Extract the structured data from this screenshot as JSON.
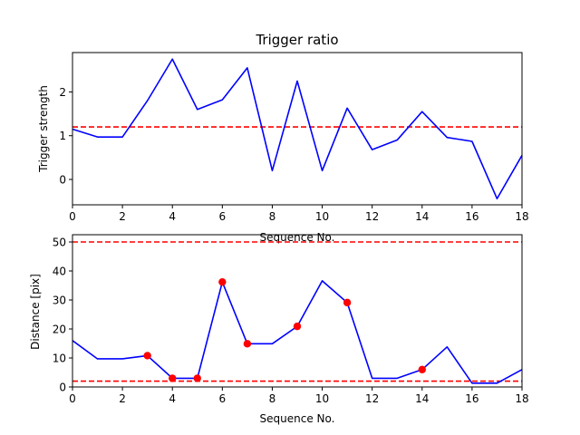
{
  "chart_data": [
    {
      "type": "line",
      "title": "Trigger ratio",
      "xlabel": "Sequence No.",
      "ylabel": "Trigger strength",
      "xlim": [
        0,
        18
      ],
      "ylim": [
        -0.58,
        2.9
      ],
      "xticks": [
        0,
        2,
        4,
        6,
        8,
        10,
        12,
        14,
        16,
        18
      ],
      "yticks": [
        0,
        1,
        2
      ],
      "grid": false,
      "series": [
        {
          "x": [
            0,
            1,
            2,
            3,
            4,
            5,
            6,
            7,
            8,
            9,
            10,
            11,
            12,
            13,
            14,
            15,
            16,
            17,
            18
          ],
          "values": [
            1.15,
            0.97,
            0.97,
            1.8,
            2.75,
            1.6,
            1.82,
            2.55,
            0.2,
            2.25,
            0.2,
            1.63,
            0.68,
            0.9,
            1.55,
            0.96,
            0.87,
            -0.44,
            0.55
          ],
          "color": "#0000ff"
        }
      ],
      "hlines": [
        {
          "y": 1.2,
          "color": "#ff0000",
          "style": "dashed"
        }
      ]
    },
    {
      "type": "line",
      "title": "",
      "xlabel": "Sequence No.",
      "ylabel": "Distance [pix]",
      "xlim": [
        0,
        18
      ],
      "ylim": [
        0,
        52.5
      ],
      "xticks": [
        0,
        2,
        4,
        6,
        8,
        10,
        12,
        14,
        16,
        18
      ],
      "yticks": [
        0,
        10,
        20,
        30,
        40,
        50
      ],
      "grid": false,
      "series": [
        {
          "x": [
            0,
            1,
            2,
            3,
            4,
            5,
            6,
            7,
            8,
            9,
            10,
            11,
            12,
            13,
            14,
            15,
            16,
            17,
            18
          ],
          "values": [
            16,
            9.7,
            9.7,
            10.8,
            3,
            3,
            36.2,
            14.9,
            14.9,
            20.9,
            36.6,
            29.1,
            3,
            3,
            6,
            13.8,
            1.3,
            1.3,
            6
          ],
          "color": "#0000ff"
        }
      ],
      "markers": {
        "x": [
          3,
          4,
          5,
          6,
          7,
          9,
          11,
          14
        ],
        "values": [
          10.8,
          3,
          3,
          36.2,
          14.9,
          20.9,
          29.1,
          6
        ],
        "color": "#ff0000"
      },
      "hlines": [
        {
          "y": 50,
          "color": "#ff0000",
          "style": "dashed"
        },
        {
          "y": 2,
          "color": "#ff0000",
          "style": "dashed"
        }
      ]
    }
  ]
}
